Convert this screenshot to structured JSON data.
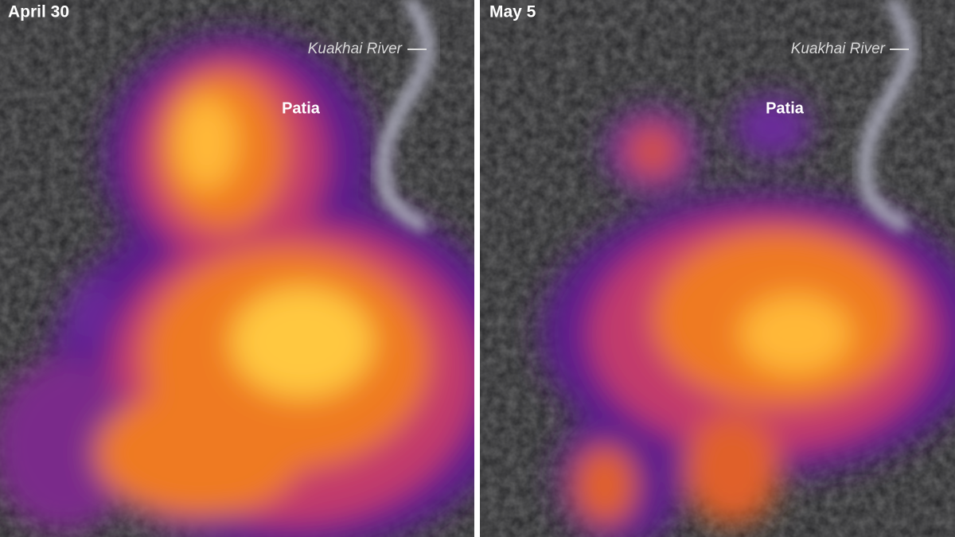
{
  "panels": [
    {
      "date": "April 30",
      "river": "Kuakhai River",
      "place": "Patia"
    },
    {
      "date": "May 5",
      "river": "Kuakhai River",
      "place": "Patia"
    }
  ]
}
